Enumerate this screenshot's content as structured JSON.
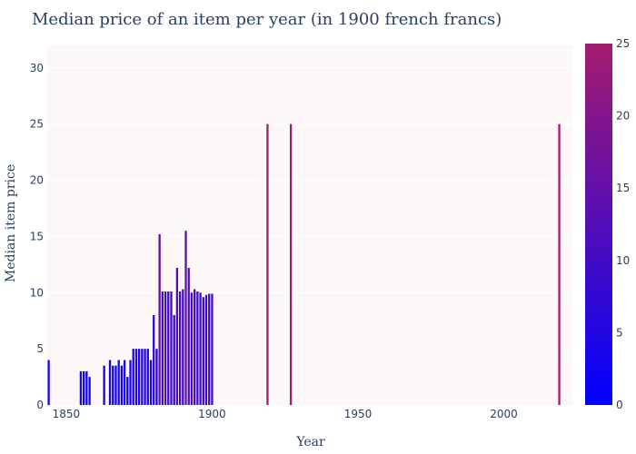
{
  "chart_data": {
    "type": "bar",
    "title": "Median price of an item per year (in 1900 french francs)",
    "xlabel": "Year",
    "ylabel": "Median item price",
    "xlim": [
      1843.5,
      2023.5
    ],
    "ylim": [
      0,
      32
    ],
    "x_ticks": [
      1850,
      1900,
      1950,
      2000
    ],
    "y_ticks": [
      0,
      5,
      10,
      15,
      20,
      25,
      30
    ],
    "grid": true,
    "legend": "none",
    "colorscale": {
      "min": 0,
      "max": 25,
      "ticks": [
        0,
        5,
        10,
        15,
        20,
        25
      ],
      "low_color": "#0000ff",
      "high_color": "#a41b6e"
    },
    "colors": {
      "plot_background": "#fdf8f7",
      "grid": "#ffffff",
      "text": "#2a3f5f"
    },
    "x": [
      1843,
      1844,
      1855,
      1856,
      1857,
      1858,
      1863,
      1865,
      1866,
      1867,
      1868,
      1869,
      1870,
      1871,
      1872,
      1873,
      1874,
      1875,
      1876,
      1877,
      1878,
      1879,
      1880,
      1881,
      1882,
      1883,
      1884,
      1885,
      1886,
      1887,
      1888,
      1889,
      1890,
      1891,
      1892,
      1893,
      1894,
      1895,
      1896,
      1897,
      1898,
      1899,
      1900,
      1919,
      1927,
      2019
    ],
    "values": [
      3.5,
      4,
      3,
      3,
      3,
      2.5,
      3.5,
      4,
      3.5,
      3.5,
      4,
      3.5,
      4,
      2.5,
      4,
      5,
      5,
      5,
      5,
      5,
      5,
      4,
      8,
      5,
      15.2,
      10.1,
      10.1,
      10.1,
      10.1,
      8,
      12.2,
      10.1,
      10.3,
      15.5,
      12.2,
      10,
      10.3,
      10.1,
      10,
      9.6,
      9.8,
      9.9,
      9.9,
      25,
      25,
      25
    ]
  }
}
